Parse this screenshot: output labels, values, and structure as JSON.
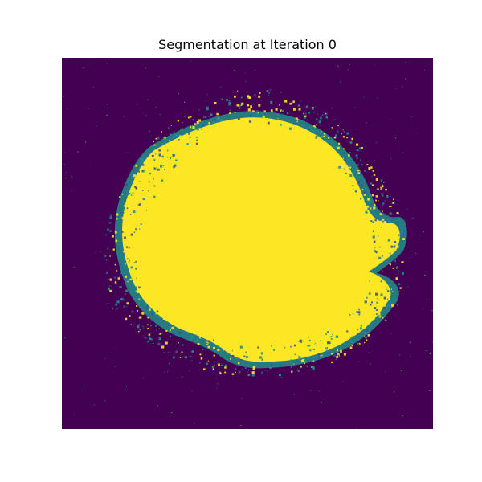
{
  "figure": {
    "title": "Segmentation at Iteration 0"
  },
  "colors": {
    "background_class": "#440154",
    "foreground_class": "#fde725",
    "boundary_teal": "#21918c",
    "boundary_blue": "#3b528b",
    "boundary_green": "#5ec962"
  },
  "image": {
    "description_type": "binary segmentation mask",
    "colormap": "viridis"
  }
}
